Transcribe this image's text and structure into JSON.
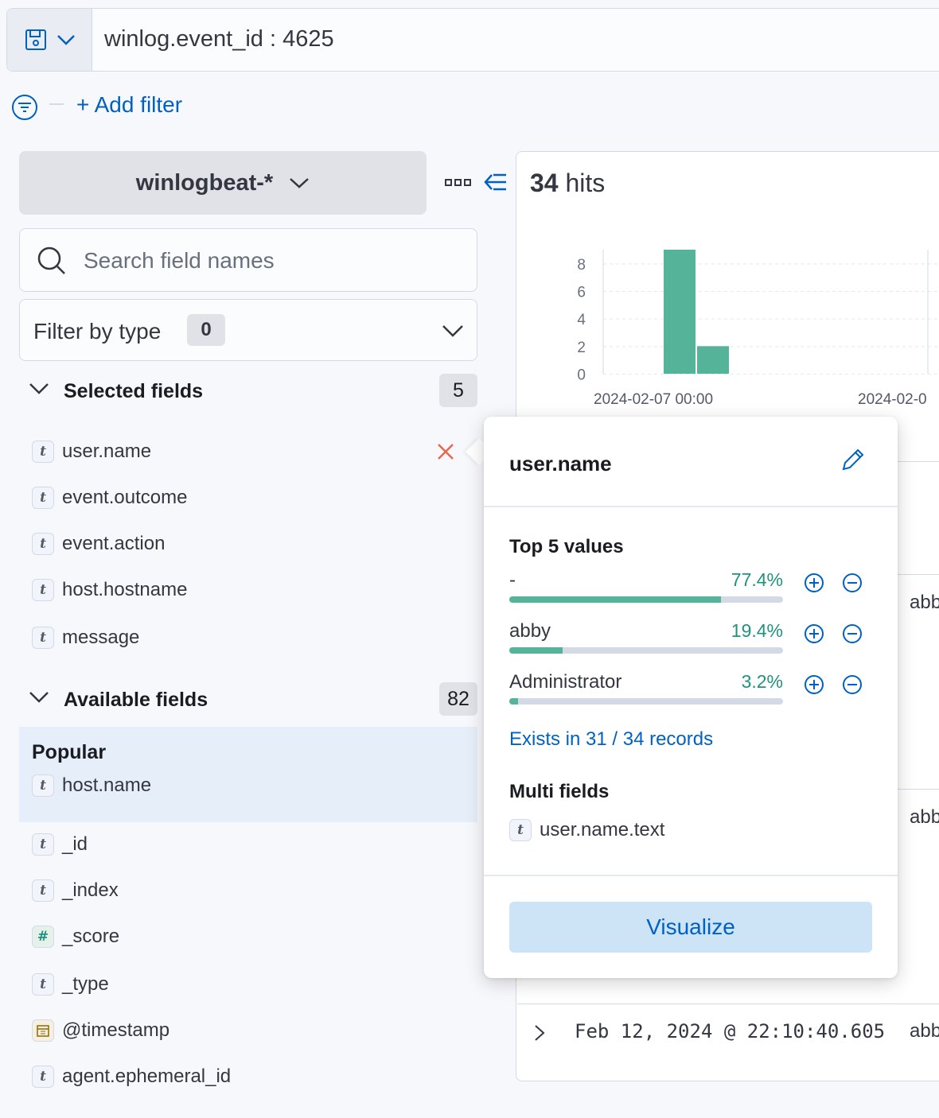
{
  "query": {
    "text": "winlog.event_id : 4625"
  },
  "filters": {
    "add_filter_label": "+ Add filter"
  },
  "sidebar": {
    "index_pattern": "winlogbeat-*",
    "search_placeholder": "Search field names",
    "filter_by_type": {
      "label": "Filter by type",
      "count": "0"
    },
    "selected": {
      "title": "Selected fields",
      "count": "5",
      "fields": [
        {
          "name": "user.name",
          "type": "t"
        },
        {
          "name": "event.outcome",
          "type": "t"
        },
        {
          "name": "event.action",
          "type": "t"
        },
        {
          "name": "host.hostname",
          "type": "t"
        },
        {
          "name": "message",
          "type": "t"
        }
      ]
    },
    "available": {
      "title": "Available fields",
      "count": "82",
      "popular_label": "Popular",
      "popular_fields": [
        {
          "name": "host.name",
          "type": "t"
        }
      ],
      "fields": [
        {
          "name": "_id",
          "type": "t"
        },
        {
          "name": "_index",
          "type": "t"
        },
        {
          "name": "_score",
          "type": "#"
        },
        {
          "name": "_type",
          "type": "t"
        },
        {
          "name": "@timestamp",
          "type": "date"
        },
        {
          "name": "agent.ephemeral_id",
          "type": "t"
        }
      ]
    }
  },
  "main": {
    "hits_count": "34",
    "hits_label": "hits",
    "rows": [
      {
        "user": "abb"
      },
      {
        "user": "abb"
      }
    ],
    "last_row": {
      "timestamp": "Feb 12, 2024 @ 22:10:40.605",
      "user": "abb"
    }
  },
  "chart_data": {
    "type": "bar",
    "x_tick_labels": [
      "2024-02-07 00:00",
      "2024-02-0"
    ],
    "y_ticks": [
      "0",
      "2",
      "4",
      "6",
      "8"
    ],
    "bars": [
      {
        "label": "bar-1",
        "value": 9
      },
      {
        "label": "bar-2",
        "value": 2
      }
    ],
    "ylim": [
      0,
      9
    ],
    "grid": true,
    "bar_color": "#54b399"
  },
  "popover": {
    "field_name": "user.name",
    "top_values_title": "Top 5 values",
    "top_values": [
      {
        "value": "-",
        "percent_label": "77.4%",
        "fraction": 0.774
      },
      {
        "value": "abby",
        "percent_label": "19.4%",
        "fraction": 0.194
      },
      {
        "value": "Administrator",
        "percent_label": "3.2%",
        "fraction": 0.032
      }
    ],
    "exists_text": "Exists in 31 / 34 records",
    "multi_fields_title": "Multi fields",
    "multi_fields": [
      {
        "name": "user.name.text",
        "type": "t"
      }
    ],
    "visualize_label": "Visualize"
  },
  "colors": {
    "accent": "#0061c2",
    "success": "#209280",
    "danger": "#e7664c"
  }
}
